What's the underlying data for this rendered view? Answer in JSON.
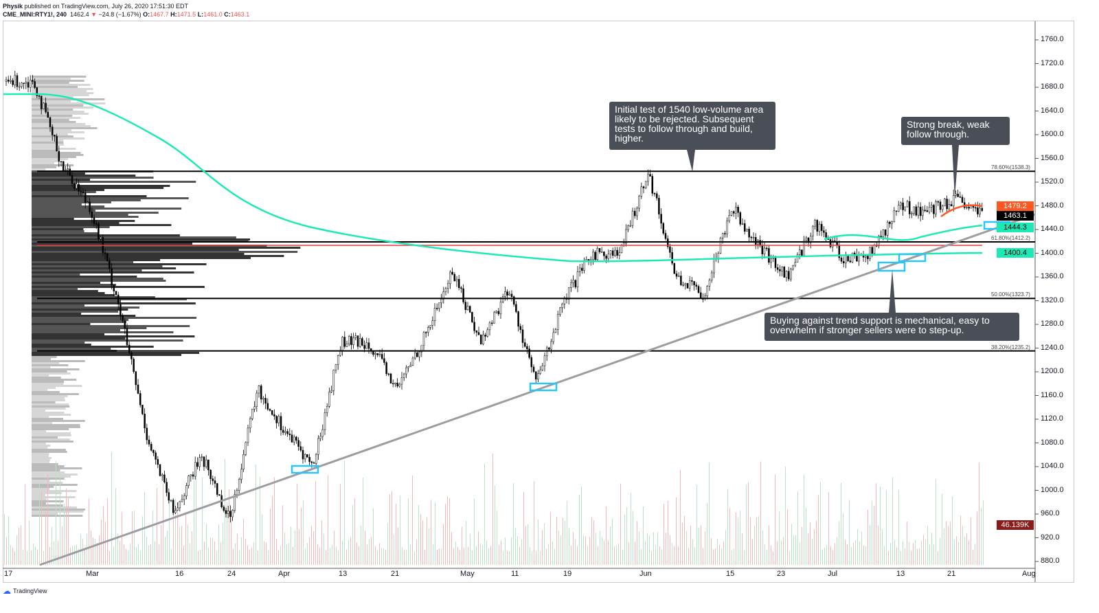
{
  "header": {
    "publisher": "Physik",
    "published_text": "published on TradingView.com, July 26, 2020 17:51:30 EDT",
    "symbol": "CME_MINI:RTY1!, 240",
    "last": "1462.4",
    "change": "−24.8 (−1.67%)",
    "o_label": "O:",
    "o": "1467.7",
    "h_label": "H:",
    "h": "1471.5",
    "l_label": "L:",
    "l": "1461.0",
    "c_label": "C:",
    "c": "1463.1"
  },
  "price_axis": [
    "1760.0",
    "1720.0",
    "1680.0",
    "1640.0",
    "1600.0",
    "1560.0",
    "1520.0",
    "1480.0",
    "1440.0",
    "1400.0",
    "1360.0",
    "1320.0",
    "1280.0",
    "1240.0",
    "1200.0",
    "1160.0",
    "1120.0",
    "1080.0",
    "1040.0",
    "1000.0",
    "960.0",
    "920.0",
    "880.0"
  ],
  "time_axis": [
    "17",
    "Mar",
    "16",
    "24",
    "Apr",
    "13",
    "21",
    "May",
    "11",
    "19",
    "Jun",
    "15",
    "23",
    "Jul",
    "13",
    "21",
    "Aug"
  ],
  "price_labels": [
    {
      "text": "1479.2",
      "bg": "#ff5722",
      "fg": "#ffffff"
    },
    {
      "text": "1463.1",
      "bg": "#000000",
      "fg": "#ffffff"
    },
    {
      "text": "1444.3",
      "bg": "#1de9b6",
      "fg": "#000000"
    },
    {
      "text": "1400.4",
      "bg": "#1de9b6",
      "fg": "#000000"
    },
    {
      "text": "46.139K",
      "bg": "#8b1a1a",
      "fg": "#ffffff"
    }
  ],
  "fib_levels": [
    {
      "label": "78.60%(1538.3)",
      "price": 1538.3
    },
    {
      "label": "61.80%(1412.2)",
      "price": 1412.2
    },
    {
      "label": "50.00%(1323.7)",
      "price": 1323.7
    },
    {
      "label": "38.20%(1235.2)",
      "price": 1235.2
    }
  ],
  "annotations": [
    "Initial test of 1540 low-volume area likely to be rejected. Subsequent tests to follow through and build, higher.",
    "Strong break, weak follow through.",
    "Buying against trend support is mechanical, easy to overwhelm if stronger sellers were to step-up."
  ],
  "footer": {
    "brand": "TradingView"
  },
  "colors": {
    "ma_long": "#1de9b6",
    "ma_short_red": "#ff5722",
    "trendline": "#9e9ba3",
    "box": "#29c5f6"
  },
  "chart_data": {
    "type": "candlestick",
    "waypoints_price": [
      1690,
      1690,
      1550,
      1480,
      1320,
      1100,
      960,
      1060,
      950,
      1170,
      1100,
      1040,
      1250,
      1250,
      1170,
      1260,
      1370,
      1250,
      1340,
      1180,
      1320,
      1400,
      1400,
      1540,
      1360,
      1330,
      1480,
      1410,
      1360,
      1450,
      1390,
      1400,
      1480,
      1470,
      1490,
      1463
    ],
    "ylim": [
      880,
      1760
    ]
  }
}
